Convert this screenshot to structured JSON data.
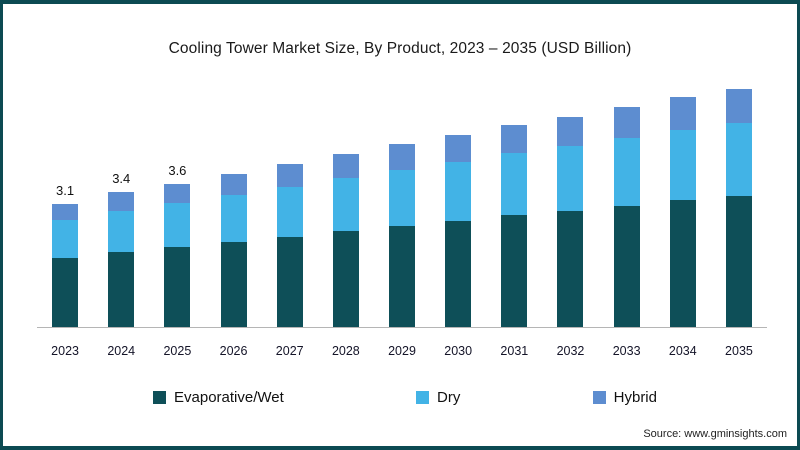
{
  "title": "Cooling Tower Market Size, By Product, 2023 – 2035 (USD Billion)",
  "source": "Source: www.gminsights.com",
  "frame": {
    "border_color": "#0c4a52",
    "background": "#ffffff",
    "axis_line_color": "#b5b5b5"
  },
  "legend": [
    {
      "label": "Evaporative/Wet",
      "color": "#0e4f58"
    },
    {
      "label": "Dry",
      "color": "#42b3e6"
    },
    {
      "label": "Hybrid",
      "color": "#5d8dd0"
    }
  ],
  "chart_data": {
    "type": "bar",
    "stacked": true,
    "title": "Cooling Tower Market Size, By Product, 2023 – 2035 (USD Billion)",
    "xlabel": "",
    "ylabel": "",
    "ylim": [
      0,
      6.5
    ],
    "grid": false,
    "legend_position": "bottom",
    "categories": [
      "2023",
      "2024",
      "2025",
      "2026",
      "2027",
      "2028",
      "2029",
      "2030",
      "2031",
      "2032",
      "2033",
      "2034",
      "2035"
    ],
    "series": [
      {
        "name": "Evaporative/Wet",
        "color": "#0e4f58",
        "values": [
          1.75,
          1.9,
          2.02,
          2.15,
          2.28,
          2.42,
          2.55,
          2.68,
          2.82,
          2.93,
          3.06,
          3.19,
          3.3
        ]
      },
      {
        "name": "Dry",
        "color": "#42b3e6",
        "values": [
          0.95,
          1.03,
          1.1,
          1.18,
          1.26,
          1.33,
          1.41,
          1.49,
          1.56,
          1.62,
          1.7,
          1.77,
          1.84
        ]
      },
      {
        "name": "Hybrid",
        "color": "#5d8dd0",
        "values": [
          0.4,
          0.47,
          0.48,
          0.52,
          0.56,
          0.6,
          0.64,
          0.68,
          0.72,
          0.75,
          0.79,
          0.84,
          0.86
        ]
      }
    ],
    "totals": [
      3.1,
      3.4,
      3.6,
      3.85,
      4.1,
      4.35,
      4.6,
      4.85,
      5.1,
      5.3,
      5.55,
      5.8,
      6.0
    ],
    "data_labels": [
      "3.1",
      "3.4",
      "3.6",
      "",
      "",
      "",
      "",
      "",
      "",
      "",
      "",
      "",
      ""
    ]
  }
}
